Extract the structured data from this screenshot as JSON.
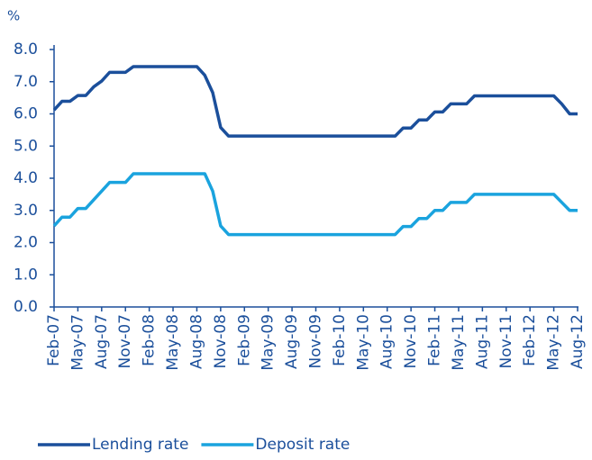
{
  "chart_data": {
    "type": "line",
    "y_unit": "%",
    "categories": [
      "Feb-07",
      null,
      null,
      "May-07",
      null,
      null,
      "Aug-07",
      null,
      null,
      "Nov-07",
      null,
      null,
      "Feb-08",
      null,
      null,
      "May-08",
      null,
      null,
      "Aug-08",
      null,
      null,
      "Nov-08",
      null,
      null,
      "Feb-09",
      null,
      null,
      "May-09",
      null,
      null,
      "Aug-09",
      null,
      null,
      "Nov-09",
      null,
      null,
      "Feb-10",
      null,
      null,
      "May-10",
      null,
      null,
      "Aug-10",
      null,
      null,
      "Nov-10",
      null,
      null,
      "Feb-11",
      null,
      null,
      "May-11",
      null,
      null,
      "Aug-11",
      null,
      null,
      "Nov-11",
      null,
      null,
      "Feb-12",
      null,
      null,
      "May-12",
      null,
      null,
      "Aug-12"
    ],
    "series": [
      {
        "name": "Lending rate",
        "color": "#1b4f9b",
        "values": [
          6.12,
          6.39,
          6.39,
          6.57,
          6.57,
          6.84,
          7.02,
          7.29,
          7.29,
          7.29,
          7.47,
          7.47,
          7.47,
          7.47,
          7.47,
          7.47,
          7.47,
          7.47,
          7.47,
          7.2,
          6.66,
          5.58,
          5.31,
          5.31,
          5.31,
          5.31,
          5.31,
          5.31,
          5.31,
          5.31,
          5.31,
          5.31,
          5.31,
          5.31,
          5.31,
          5.31,
          5.31,
          5.31,
          5.31,
          5.31,
          5.31,
          5.31,
          5.31,
          5.31,
          5.56,
          5.56,
          5.81,
          5.81,
          6.06,
          6.06,
          6.31,
          6.31,
          6.31,
          6.56,
          6.56,
          6.56,
          6.56,
          6.56,
          6.56,
          6.56,
          6.56,
          6.56,
          6.56,
          6.56,
          6.31,
          6.0,
          6.0
        ]
      },
      {
        "name": "Deposit rate",
        "color": "#1aa3de",
        "values": [
          2.52,
          2.79,
          2.79,
          3.06,
          3.06,
          3.33,
          3.6,
          3.87,
          3.87,
          3.87,
          4.14,
          4.14,
          4.14,
          4.14,
          4.14,
          4.14,
          4.14,
          4.14,
          4.14,
          4.14,
          3.6,
          2.52,
          2.25,
          2.25,
          2.25,
          2.25,
          2.25,
          2.25,
          2.25,
          2.25,
          2.25,
          2.25,
          2.25,
          2.25,
          2.25,
          2.25,
          2.25,
          2.25,
          2.25,
          2.25,
          2.25,
          2.25,
          2.25,
          2.25,
          2.5,
          2.5,
          2.75,
          2.75,
          3.0,
          3.0,
          3.25,
          3.25,
          3.25,
          3.5,
          3.5,
          3.5,
          3.5,
          3.5,
          3.5,
          3.5,
          3.5,
          3.5,
          3.5,
          3.5,
          3.25,
          3.0,
          3.0
        ]
      }
    ],
    "ylim": [
      0,
      8
    ],
    "yticks": [
      {
        "value": 0,
        "label": "0.0"
      },
      {
        "value": 1,
        "label": "1.0"
      },
      {
        "value": 2,
        "label": "2.0"
      },
      {
        "value": 3,
        "label": "3.0"
      },
      {
        "value": 4,
        "label": "4.0"
      },
      {
        "value": 5,
        "label": "5.0"
      },
      {
        "value": 6,
        "label": "6.0"
      },
      {
        "value": 7,
        "label": "7.0"
      },
      {
        "value": 8,
        "label": "8.0"
      }
    ],
    "grid": false,
    "legend": "bottom"
  }
}
